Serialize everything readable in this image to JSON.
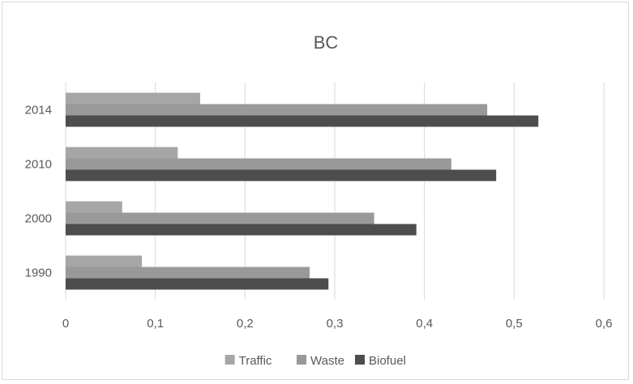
{
  "chart_data": {
    "type": "bar",
    "orientation": "horizontal",
    "title": "BC",
    "xlabel": "",
    "ylabel": "",
    "categories": [
      "1990",
      "2000",
      "2010",
      "2014"
    ],
    "series": [
      {
        "name": "Traffic",
        "color": "#a6a6a6",
        "values": [
          0.085,
          0.063,
          0.125,
          0.15
        ]
      },
      {
        "name": "Waste",
        "color": "#999999",
        "values": [
          0.272,
          0.344,
          0.43,
          0.47
        ]
      },
      {
        "name": "Biofuel",
        "color": "#4d4d4d",
        "values": [
          0.293,
          0.391,
          0.48,
          0.527
        ]
      }
    ],
    "xlim": [
      0,
      0.6
    ],
    "xticks": [
      "0",
      "0,1",
      "0,2",
      "0,3",
      "0,4",
      "0,5",
      "0,6"
    ],
    "grid": "vertical",
    "legend": "bottom"
  }
}
